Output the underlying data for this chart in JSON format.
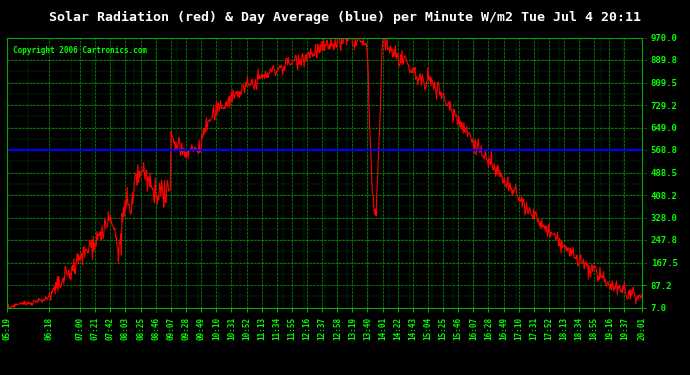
{
  "title": "Solar Radiation (red) & Day Average (blue) per Minute W/m2 Tue Jul 4 20:11",
  "copyright": "Copyright 2006 Cartronics.com",
  "bg_color": "#000000",
  "plot_bg_color": "#000000",
  "grid_color": "#00cc00",
  "title_color": "#ffffff",
  "label_color": "#00ff00",
  "red_line_color": "#ff0000",
  "blue_line_color": "#0000ff",
  "yticks": [
    7.0,
    87.2,
    167.5,
    247.8,
    328.0,
    408.2,
    488.5,
    568.8,
    649.0,
    729.2,
    809.5,
    889.8,
    970.0
  ],
  "ylim": [
    7.0,
    970.0
  ],
  "day_average": 568.8,
  "xtick_labels": [
    "05:19",
    "06:18",
    "07:00",
    "07:21",
    "07:42",
    "08:03",
    "08:25",
    "08:46",
    "09:07",
    "09:28",
    "09:49",
    "10:10",
    "10:31",
    "10:52",
    "11:13",
    "11:34",
    "11:55",
    "12:16",
    "12:37",
    "12:58",
    "13:19",
    "13:40",
    "14:01",
    "14:22",
    "14:43",
    "15:04",
    "15:25",
    "15:46",
    "16:07",
    "16:28",
    "16:49",
    "17:10",
    "17:31",
    "17:52",
    "18:13",
    "18:34",
    "18:55",
    "19:16",
    "19:37",
    "20:01"
  ]
}
